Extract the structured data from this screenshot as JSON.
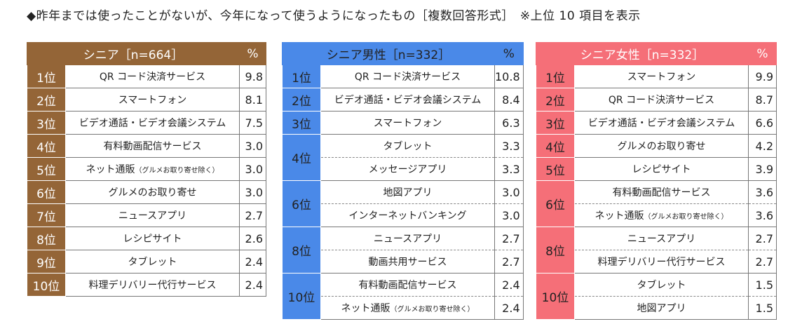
{
  "heading": "◆昨年までは使ったことがないが、今年になって使うようになったもの［複数回答形式］　※上位 10 項目を表示",
  "all": {
    "title": "シニア［n=664］",
    "pct_header": "%",
    "rows": [
      {
        "rank": "1位",
        "name": "QR コード決済サービス",
        "pct": "9.8"
      },
      {
        "rank": "2位",
        "name": "スマートフォン",
        "pct": "8.1"
      },
      {
        "rank": "3位",
        "name": "ビデオ通話・ビデオ会議システム",
        "pct": "7.5"
      },
      {
        "rank": "4位",
        "name": "有料動画配信サービス",
        "pct": "3.0"
      },
      {
        "rank": "5位",
        "name": "ネット通販",
        "note": "（グルメお取り寄せ除く）",
        "pct": "3.0"
      },
      {
        "rank": "6位",
        "name": "グルメのお取り寄せ",
        "pct": "3.0"
      },
      {
        "rank": "7位",
        "name": "ニュースアプリ",
        "pct": "2.7"
      },
      {
        "rank": "8位",
        "name": "レシピサイト",
        "pct": "2.6"
      },
      {
        "rank": "9位",
        "name": "タブレット",
        "pct": "2.4"
      },
      {
        "rank": "10位",
        "name": "料理デリバリー代行サービス",
        "pct": "2.4"
      }
    ]
  },
  "male": {
    "title": "シニア男性［n=332］",
    "pct_header": "%",
    "rows": [
      {
        "rank": "1位",
        "name": "QR コード決済サービス",
        "pct": "10.8"
      },
      {
        "rank": "2位",
        "name": "ビデオ通話・ビデオ会議システム",
        "pct": "8.4"
      },
      {
        "rank": "3位",
        "name": "スマートフォン",
        "pct": "6.3"
      },
      {
        "rank": "4位",
        "name": "タブレット",
        "pct": "3.3"
      },
      {
        "rank": "",
        "name": "メッセージアプリ",
        "pct": "3.3"
      },
      {
        "rank": "6位",
        "name": "地図アプリ",
        "pct": "3.0"
      },
      {
        "rank": "",
        "name": "インターネットバンキング",
        "pct": "3.0"
      },
      {
        "rank": "8位",
        "name": "ニュースアプリ",
        "pct": "2.7"
      },
      {
        "rank": "",
        "name": "動画共用サービス",
        "pct": "2.7"
      },
      {
        "rank": "10位",
        "name": "有料動画配信サービス",
        "pct": "2.4"
      },
      {
        "rank": "",
        "name": "ネット通販",
        "note": "（グルメお取り寄せ除く）",
        "pct": "2.4"
      }
    ]
  },
  "female": {
    "title": "シニア女性［n=332］",
    "pct_header": "%",
    "rows": [
      {
        "rank": "1位",
        "name": "スマートフォン",
        "pct": "9.9"
      },
      {
        "rank": "2位",
        "name": "QR コード決済サービス",
        "pct": "8.7"
      },
      {
        "rank": "3位",
        "name": "ビデオ通話・ビデオ会議システム",
        "pct": "6.6"
      },
      {
        "rank": "4位",
        "name": "グルメのお取り寄せ",
        "pct": "4.2"
      },
      {
        "rank": "5位",
        "name": "レシピサイト",
        "pct": "3.9"
      },
      {
        "rank": "6位",
        "name": "有料動画配信サービス",
        "pct": "3.6"
      },
      {
        "rank": "",
        "name": "ネット通販",
        "note": "（グルメお取り寄せ除く）",
        "pct": "3.6"
      },
      {
        "rank": "8位",
        "name": "ニュースアプリ",
        "pct": "2.7"
      },
      {
        "rank": "",
        "name": "料理デリバリー代行サービス",
        "pct": "2.7"
      },
      {
        "rank": "10位",
        "name": "タブレット",
        "pct": "1.5"
      },
      {
        "rank": "",
        "name": "地図アプリ",
        "pct": "1.5"
      }
    ]
  },
  "colors": {
    "all": "#946537",
    "male": "#4a89e8",
    "female": "#f56f78"
  }
}
